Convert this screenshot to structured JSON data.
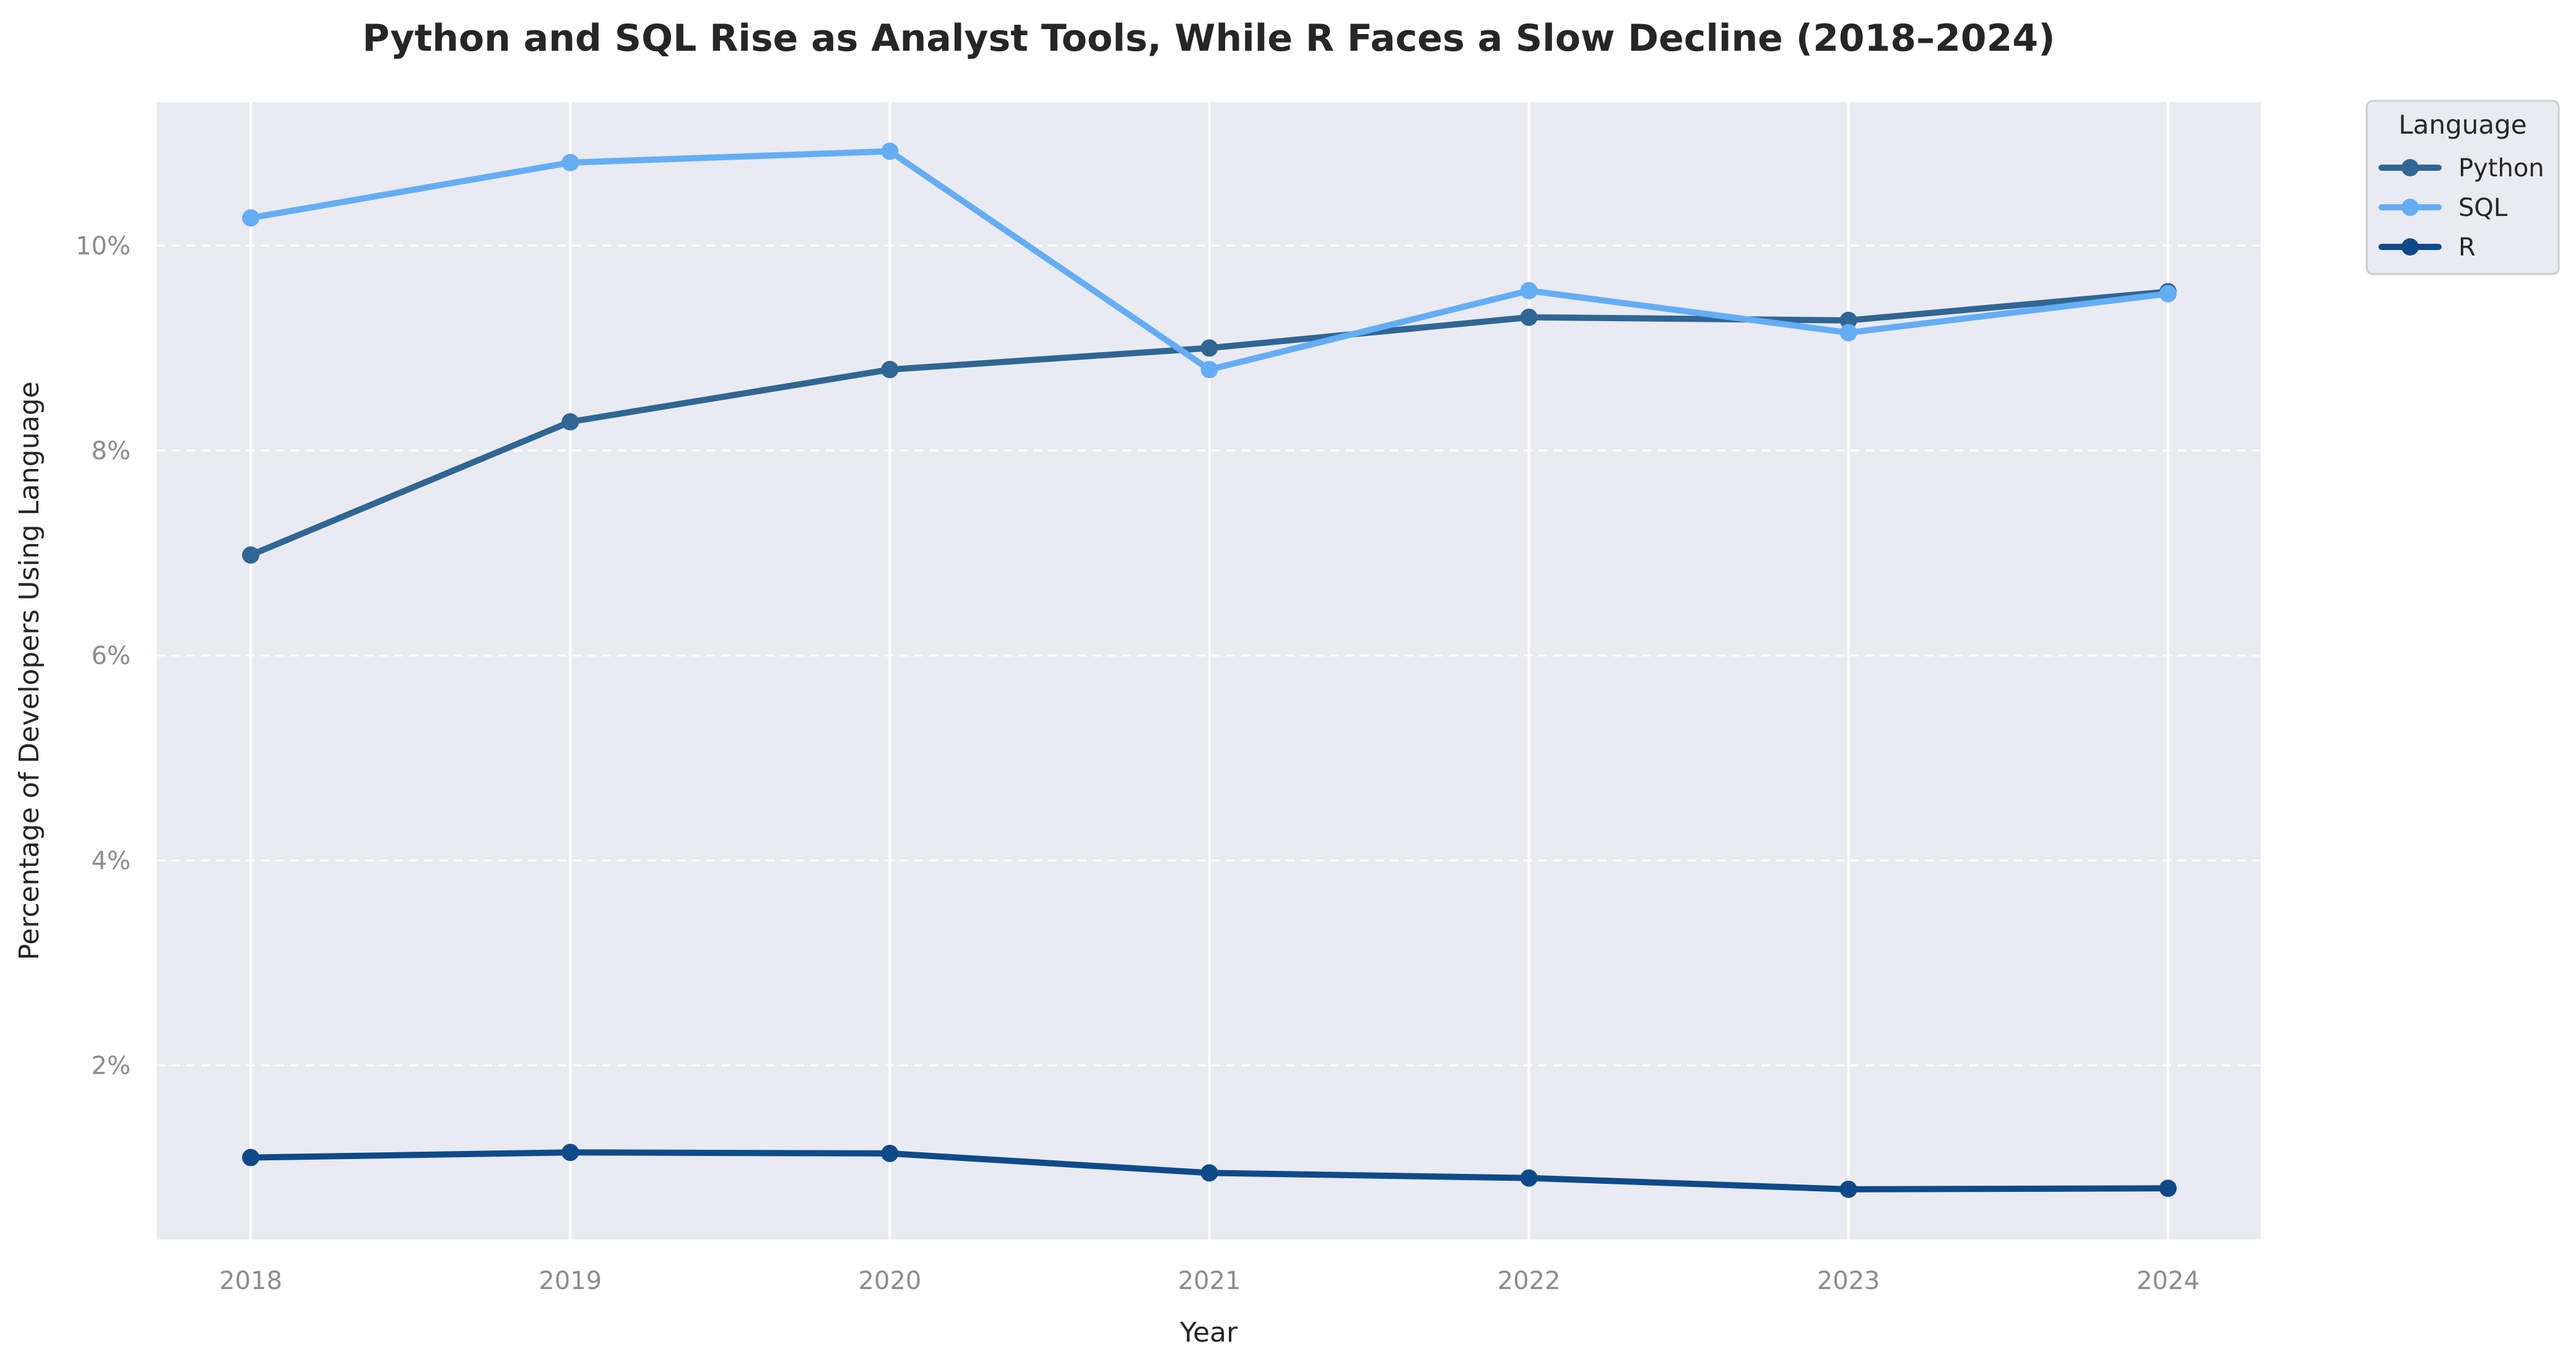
{
  "chart_data": {
    "type": "line",
    "title": "Python and SQL Rise as Analyst Tools, While R Faces a Slow Decline (2018–2024)",
    "xlabel": "Year",
    "ylabel": "Percentage of Developers Using Language",
    "x": [
      "2018",
      "2019",
      "2020",
      "2021",
      "2022",
      "2023",
      "2024"
    ],
    "yticks": [
      "2%",
      "4%",
      "6%",
      "8%",
      "10%"
    ],
    "ylim": [
      0.3,
      11.4
    ],
    "y_unit": "%",
    "grid": true,
    "legend": {
      "title": "Language",
      "placement": "outside top-right"
    },
    "series": [
      {
        "name": "Python",
        "color": "#2f6694",
        "values": [
          6.98,
          8.28,
          8.79,
          9.0,
          9.3,
          9.27,
          9.55
        ]
      },
      {
        "name": "SQL",
        "color": "#64adf5",
        "values": [
          10.27,
          10.81,
          10.92,
          8.79,
          9.56,
          9.15,
          9.53
        ]
      },
      {
        "name": "R",
        "color": "#0e4a8a",
        "values": [
          1.1,
          1.15,
          1.14,
          0.95,
          0.9,
          0.79,
          0.8
        ]
      }
    ]
  }
}
